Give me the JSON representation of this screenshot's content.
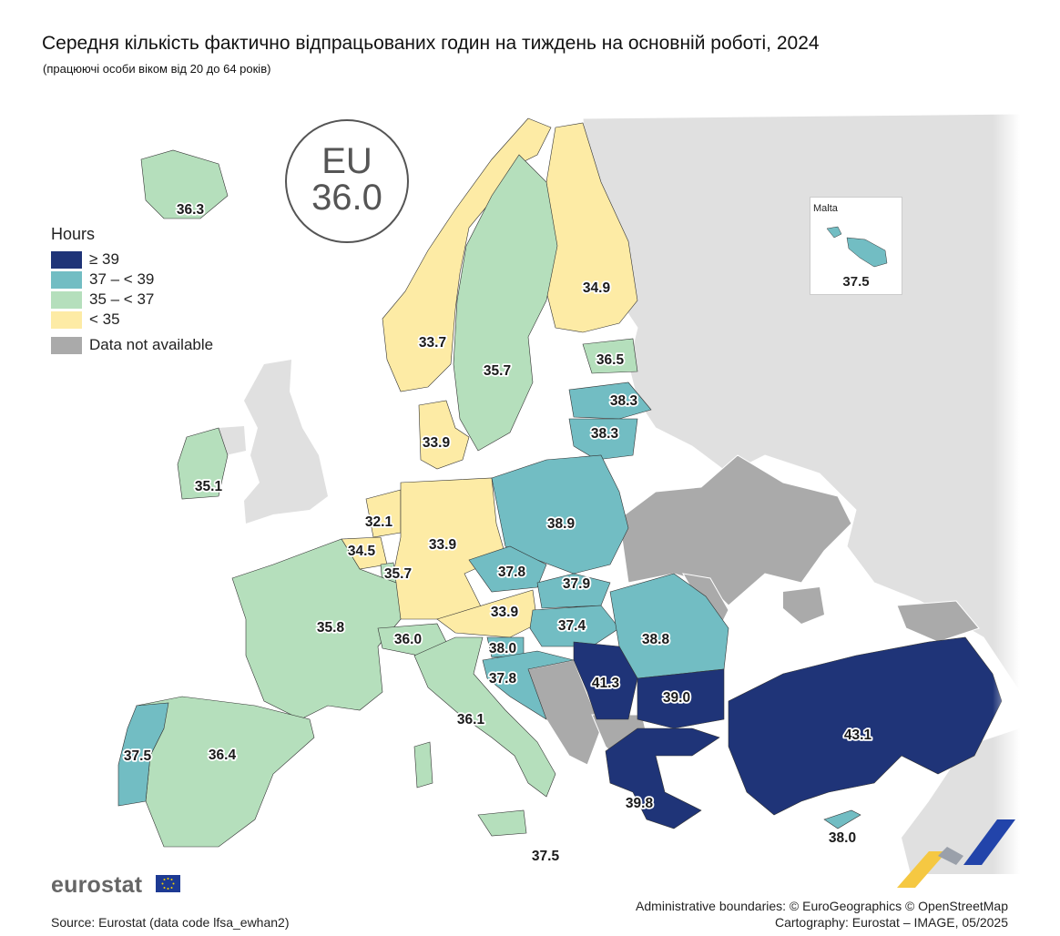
{
  "title": "Середня кількість фактично відпрацьованих годин на тиждень на основній роботі, 2024",
  "subtitle": "(працюючі особи віком від 20 до 64 років)",
  "eu": {
    "label": "EU",
    "value": "36.0"
  },
  "legend": {
    "title": "Hours",
    "items": [
      {
        "label": "≥ 39",
        "color": "#1f3478"
      },
      {
        "label": "37 – < 39",
        "color": "#72bdc3"
      },
      {
        "label": "35 – < 37",
        "color": "#b5dfbc"
      },
      {
        "label": "< 35",
        "color": "#fdeba5"
      }
    ],
    "na": {
      "label": "Data not available",
      "color": "#aaaaaa"
    }
  },
  "inset": {
    "title": "Malta",
    "value": "37.5"
  },
  "values": {
    "iceland": "36.3",
    "norway": "33.7",
    "sweden": "35.7",
    "finland": "34.9",
    "estonia": "36.5",
    "latvia": "38.3",
    "lithuania": "38.3",
    "denmark": "33.9",
    "ireland": "35.1",
    "netherlands": "32.1",
    "belgium": "34.5",
    "luxembourg": "35.7",
    "germany": "33.9",
    "poland": "38.9",
    "czechia": "37.8",
    "slovakia": "37.9",
    "austria": "33.9",
    "hungary": "37.4",
    "romania": "38.8",
    "france": "35.8",
    "switzerland": "36.0",
    "slovenia": "38.0",
    "croatia": "37.8",
    "serbia": "41.3",
    "bulgaria": "39.0",
    "italy": "36.1",
    "portugal": "37.5",
    "spain": "36.4",
    "greece": "39.8",
    "turkey": "43.1",
    "cyprus": "38.0",
    "sicily_malta": "37.5"
  },
  "footer": {
    "logo": "eurostat",
    "source": "Source: Eurostat (data code lfsa_ewhan2)",
    "credit1": "Administrative boundaries: © EuroGeographics © OpenStreetMap",
    "credit2": "Cartography: Eurostat – IMAGE, 05/2025"
  }
}
